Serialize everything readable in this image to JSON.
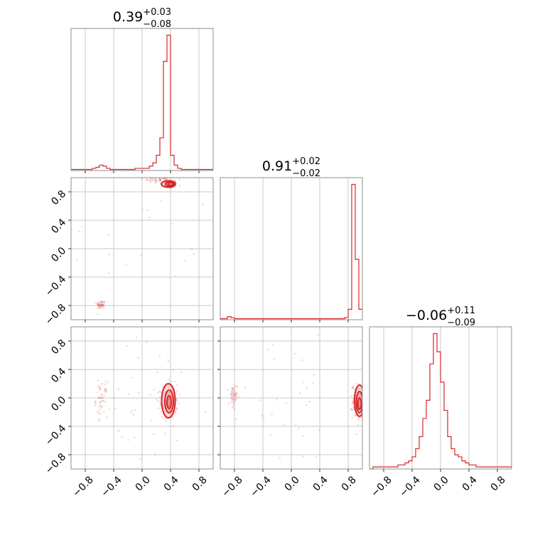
{
  "colors": {
    "series": "#d62728",
    "grid": "#c8c8c8",
    "frame": "#8c8c8c"
  },
  "chart_data": {
    "type": "corner",
    "parameters": 3,
    "range": [
      -1.0,
      1.0
    ],
    "ticks": [
      -0.8,
      -0.4,
      0.0,
      0.4,
      0.8
    ],
    "tick_labels": [
      "−0.8",
      "−0.4",
      "0.0",
      "0.4",
      "0.8"
    ],
    "grid": true,
    "titles": [
      {
        "value": "0.39",
        "plus": "+0.03",
        "minus": "−0.08"
      },
      {
        "value": "0.91",
        "plus": "+0.02",
        "minus": "−0.02"
      },
      {
        "value": "−0.06",
        "plus": "+0.11",
        "minus": "−0.09"
      }
    ],
    "histograms": [
      {
        "param": 0,
        "bin_edges": [
          -1.0,
          -0.95,
          -0.9,
          -0.85,
          -0.8,
          -0.75,
          -0.7,
          -0.65,
          -0.6,
          -0.55,
          -0.5,
          -0.45,
          -0.4,
          -0.35,
          -0.3,
          -0.25,
          -0.2,
          -0.15,
          -0.1,
          -0.05,
          0.0,
          0.05,
          0.1,
          0.15,
          0.2,
          0.25,
          0.3,
          0.35,
          0.4,
          0.45,
          0.5,
          0.55,
          0.6,
          0.65,
          0.7,
          0.75,
          0.8,
          0.85,
          0.9,
          0.95,
          1.0
        ],
        "counts": [
          1,
          1,
          1,
          1,
          1,
          1,
          2,
          3,
          5,
          4,
          2,
          1,
          1,
          1,
          1,
          1,
          1,
          1,
          2,
          2,
          2,
          2,
          4,
          7,
          14,
          30,
          100,
          124,
          14,
          5,
          2,
          1,
          1,
          1,
          1,
          1,
          1,
          1,
          1,
          1
        ]
      },
      {
        "param": 1,
        "bin_edges": [
          -1.0,
          -0.95,
          -0.9,
          -0.85,
          -0.8,
          -0.75,
          -0.7,
          -0.65,
          -0.6,
          -0.55,
          -0.5,
          -0.45,
          -0.4,
          -0.35,
          -0.3,
          -0.25,
          -0.2,
          -0.15,
          -0.1,
          -0.05,
          0.0,
          0.05,
          0.1,
          0.15,
          0.2,
          0.25,
          0.3,
          0.35,
          0.4,
          0.45,
          0.5,
          0.55,
          0.6,
          0.65,
          0.7,
          0.75,
          0.8,
          0.85,
          0.9,
          0.95,
          1.0
        ],
        "counts": [
          1,
          1,
          3,
          2,
          1,
          1,
          1,
          1,
          1,
          1,
          1,
          1,
          1,
          1,
          1,
          1,
          1,
          1,
          1,
          1,
          1,
          1,
          1,
          1,
          1,
          1,
          1,
          1,
          1,
          1,
          1,
          1,
          1,
          1,
          1,
          2,
          10,
          130,
          58,
          10
        ]
      },
      {
        "param": 2,
        "bin_edges": [
          -1.0,
          -0.95,
          -0.9,
          -0.85,
          -0.8,
          -0.75,
          -0.7,
          -0.65,
          -0.6,
          -0.55,
          -0.5,
          -0.45,
          -0.4,
          -0.35,
          -0.3,
          -0.25,
          -0.2,
          -0.15,
          -0.1,
          -0.05,
          0.0,
          0.05,
          0.1,
          0.15,
          0.2,
          0.25,
          0.3,
          0.35,
          0.4,
          0.45,
          0.5,
          0.55,
          0.6,
          0.65,
          0.7,
          0.75,
          0.8,
          0.85,
          0.9,
          0.95,
          1.0
        ],
        "counts": [
          0,
          1,
          1,
          1,
          1,
          1,
          1,
          1,
          2,
          2,
          3,
          4,
          6,
          10,
          16,
          25,
          34,
          52,
          67,
          58,
          43,
          29,
          16,
          10,
          7,
          6,
          4,
          3,
          2,
          2,
          1,
          1,
          1,
          1,
          1,
          1,
          1,
          1,
          1,
          1
        ]
      }
    ],
    "scatter_panels": [
      {
        "x_param": 0,
        "y_param": 1,
        "clusters": [
          {
            "cx": 0.39,
            "cy": 0.91,
            "sx": 0.05,
            "sy": 0.03,
            "n": 110
          },
          {
            "cx": 0.25,
            "cy": 0.97,
            "sx": 0.12,
            "sy": 0.02,
            "n": 45
          },
          {
            "cx": -0.58,
            "cy": -0.79,
            "sx": 0.03,
            "sy": 0.03,
            "n": 45
          },
          {
            "cx": 0.0,
            "cy": 0.1,
            "sx": 0.6,
            "sy": 0.6,
            "n": 25
          }
        ],
        "contours": [
          {
            "level": "outer",
            "cx": 0.37,
            "cy": 0.91,
            "rx": 0.1,
            "ry": 0.045
          },
          {
            "level": "mid",
            "cx": 0.39,
            "cy": 0.91,
            "rx": 0.06,
            "ry": 0.03
          },
          {
            "level": "inner",
            "cx": 0.4,
            "cy": 0.91,
            "rx": 0.035,
            "ry": 0.02
          }
        ]
      },
      {
        "x_param": 0,
        "y_param": 2,
        "clusters": [
          {
            "cx": 0.38,
            "cy": -0.05,
            "sx": 0.06,
            "sy": 0.12,
            "n": 180
          },
          {
            "cx": -0.57,
            "cy": -0.02,
            "sx": 0.04,
            "sy": 0.12,
            "n": 50
          },
          {
            "cx": 0.1,
            "cy": -0.1,
            "sx": 0.45,
            "sy": 0.45,
            "n": 40
          }
        ],
        "contours": [
          {
            "level": "outer",
            "cx": 0.37,
            "cy": -0.04,
            "rx": 0.095,
            "ry": 0.24
          },
          {
            "level": "mid",
            "cx": 0.38,
            "cy": -0.05,
            "rx": 0.06,
            "ry": 0.16
          },
          {
            "level": "inner",
            "cx": 0.38,
            "cy": -0.06,
            "rx": 0.03,
            "ry": 0.09
          }
        ]
      },
      {
        "x_param": 1,
        "y_param": 2,
        "clusters": [
          {
            "cx": 0.94,
            "cy": -0.05,
            "sx": 0.04,
            "sy": 0.12,
            "n": 170
          },
          {
            "cx": -0.82,
            "cy": 0.0,
            "sx": 0.03,
            "sy": 0.1,
            "n": 50
          },
          {
            "cx": 0.0,
            "cy": -0.1,
            "sx": 0.5,
            "sy": 0.45,
            "n": 30
          }
        ],
        "contours": [
          {
            "level": "outer",
            "cx": 0.96,
            "cy": -0.04,
            "rx": 0.07,
            "ry": 0.22
          },
          {
            "level": "mid",
            "cx": 0.96,
            "cy": -0.06,
            "rx": 0.045,
            "ry": 0.15
          },
          {
            "level": "inner",
            "cx": 0.96,
            "cy": -0.08,
            "rx": 0.025,
            "ry": 0.08
          }
        ]
      }
    ]
  }
}
